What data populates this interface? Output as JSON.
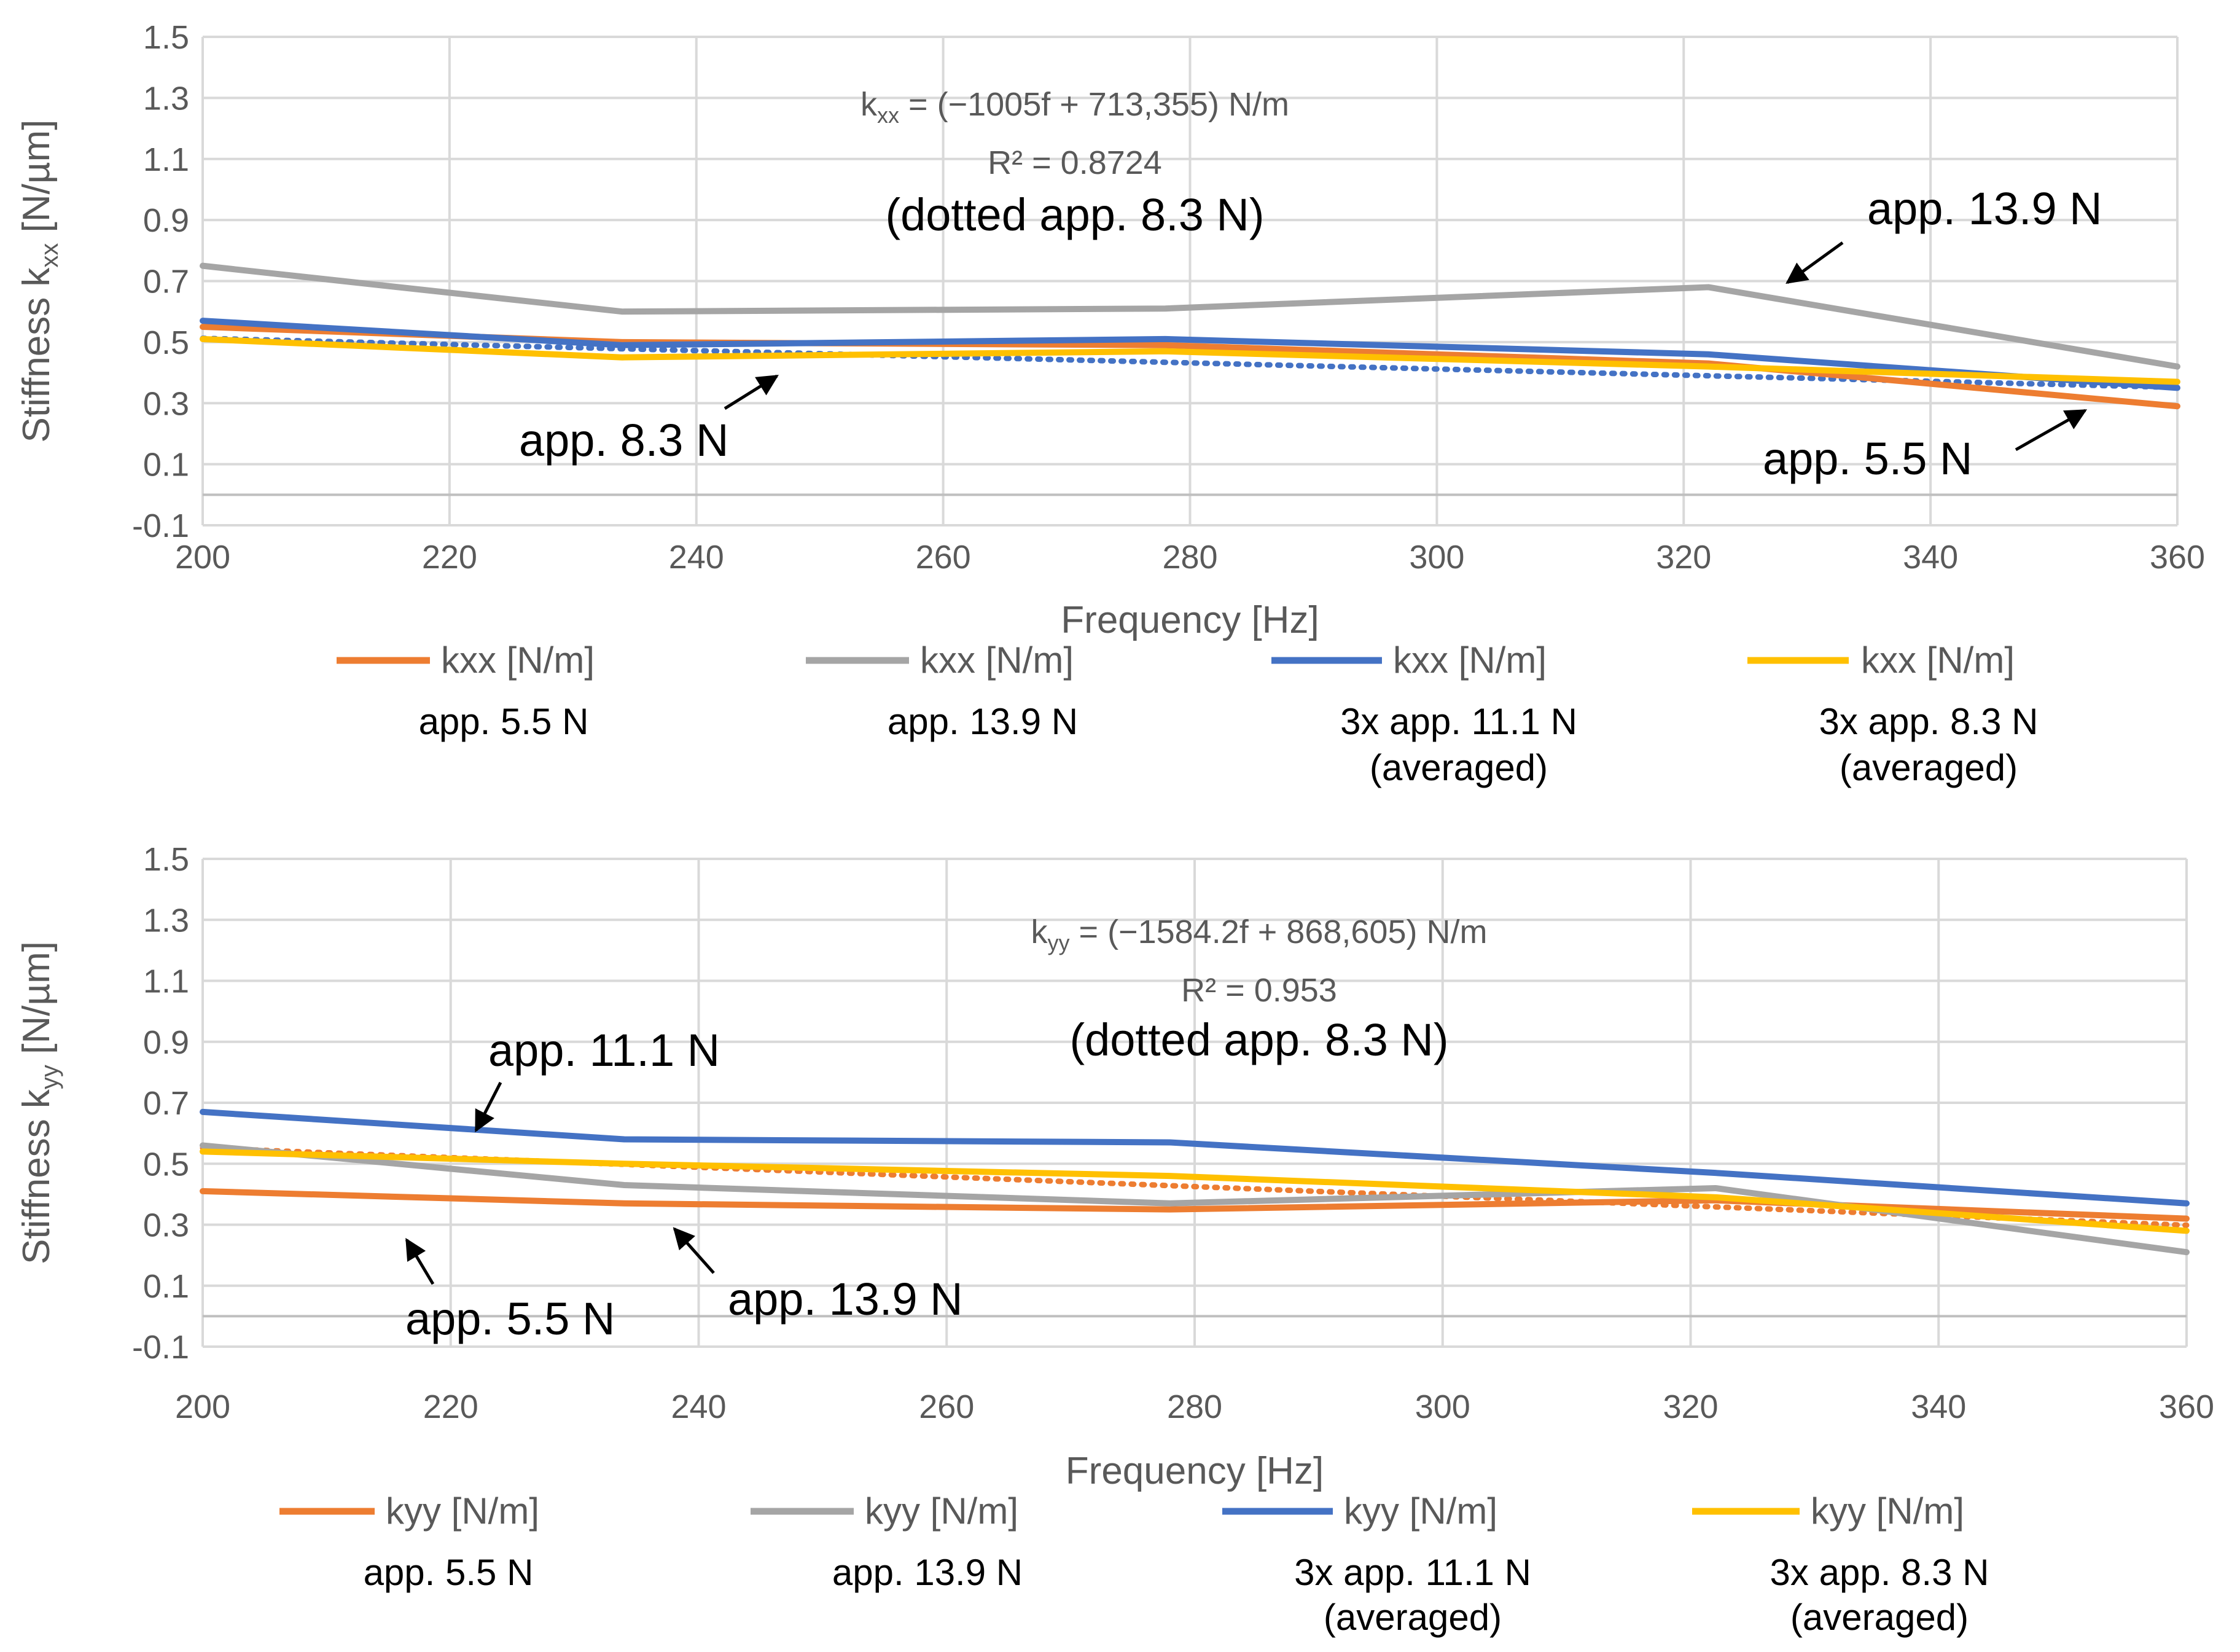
{
  "chart_data": [
    {
      "type": "line",
      "id": "kxx",
      "xlabel": "Frequency [Hz]",
      "ylabel_main": "Stiffness k",
      "ylabel_sub": "xx",
      "ylabel_unit": " [N/µm]",
      "xlim": [
        200,
        360
      ],
      "ylim": [
        -0.1,
        1.5
      ],
      "xticks": [
        200,
        220,
        240,
        260,
        280,
        300,
        320,
        340,
        360
      ],
      "xtick_labels": [
        "200",
        "220",
        "240",
        "260",
        "280",
        "300",
        "320",
        "340",
        "360"
      ],
      "yticks": [
        -0.1,
        0.1,
        0.3,
        0.5,
        0.7,
        0.9,
        1.1,
        1.3,
        1.5
      ],
      "ytick_labels": [
        "-0.1",
        "0.1",
        "0.3",
        "0.5",
        "0.7",
        "0.9",
        "1.1",
        "1.3",
        "1.5"
      ],
      "grid": true,
      "x": [
        200,
        234,
        278,
        322,
        360
      ],
      "series": [
        {
          "name": "kxx [N/m]",
          "sub": [
            "app. 5.5 N"
          ],
          "color": "#ed7d31",
          "values": [
            0.55,
            0.5,
            0.49,
            0.43,
            0.29
          ]
        },
        {
          "name": "kxx [N/m]",
          "sub": [
            "app. 13.9 N"
          ],
          "color": "#a5a5a5",
          "values": [
            0.75,
            0.6,
            0.61,
            0.68,
            0.42
          ]
        },
        {
          "name": "kxx [N/m]",
          "sub": [
            "3x app. 11.1 N",
            "(averaged)"
          ],
          "color": "#4472c4",
          "values": [
            0.57,
            0.49,
            0.51,
            0.46,
            0.35
          ]
        },
        {
          "name": "kxx [N/m]",
          "sub": [
            "3x app. 8.3 N",
            "(averaged)"
          ],
          "color": "#ffc000",
          "values": [
            0.51,
            0.45,
            0.47,
            0.42,
            0.37
          ]
        }
      ],
      "trendline": {
        "of_series": 2,
        "color": "#4472c4",
        "slope": -0.001005,
        "intercept": 0.713355
      },
      "equation_pre": "k",
      "equation_sub": "xx",
      "equation_post": " = (−1005f + 713,355) N/m",
      "r2": "R² = 0.8724",
      "annotations": [
        {
          "text": "(dotted app. 8.3 N)"
        },
        {
          "text": "app. 13.9 N"
        },
        {
          "text": "app. 8.3 N"
        },
        {
          "text": "app. 5.5 N"
        }
      ]
    },
    {
      "type": "line",
      "id": "kyy",
      "xlabel": "Frequency [Hz]",
      "ylabel_main": "Stiffness k",
      "ylabel_sub": "yy",
      "ylabel_unit": " [N/µm]",
      "xlim": [
        200,
        360
      ],
      "ylim": [
        -0.1,
        1.5
      ],
      "xticks": [
        200,
        220,
        240,
        260,
        280,
        300,
        320,
        340,
        360
      ],
      "xtick_labels": [
        "200",
        "220",
        "240",
        "260",
        "280",
        "300",
        "320",
        "340",
        "360"
      ],
      "yticks": [
        -0.1,
        0.1,
        0.3,
        0.5,
        0.7,
        0.9,
        1.1,
        1.3,
        1.5
      ],
      "ytick_labels": [
        "-0.1",
        "0.1",
        "0.3",
        "0.5",
        "0.7",
        "0.9",
        "1.1",
        "1.3",
        "1.5"
      ],
      "grid": true,
      "x": [
        200,
        234,
        278,
        322,
        360
      ],
      "series": [
        {
          "name": "kyy [N/m]",
          "sub": [
            "app. 5.5 N"
          ],
          "color": "#ed7d31",
          "values": [
            0.41,
            0.37,
            0.35,
            0.38,
            0.32
          ]
        },
        {
          "name": "kyy [N/m]",
          "sub": [
            "app. 13.9 N"
          ],
          "color": "#a5a5a5",
          "values": [
            0.56,
            0.43,
            0.37,
            0.42,
            0.21
          ]
        },
        {
          "name": "kyy [N/m]",
          "sub": [
            "3x app. 11.1 N",
            "(averaged)"
          ],
          "color": "#4472c4",
          "values": [
            0.67,
            0.58,
            0.57,
            0.47,
            0.37
          ]
        },
        {
          "name": "kyy [N/m]",
          "sub": [
            "3x app. 8.3 N",
            "(averaged)"
          ],
          "color": "#ffc000",
          "values": [
            0.54,
            0.5,
            0.46,
            0.39,
            0.28
          ]
        }
      ],
      "trendline": {
        "of_series": 3,
        "color": "#ed7d31",
        "slope": -0.0015842,
        "intercept": 0.868605
      },
      "equation_pre": "k",
      "equation_sub": "yy",
      "equation_post": " = (−1584.2f + 868,605) N/m",
      "r2": "R² = 0.953",
      "annotations": [
        {
          "text": "(dotted app. 8.3 N)"
        },
        {
          "text": "app. 11.1 N"
        },
        {
          "text": "app. 5.5 N"
        },
        {
          "text": "app. 13.9 N"
        }
      ]
    }
  ]
}
